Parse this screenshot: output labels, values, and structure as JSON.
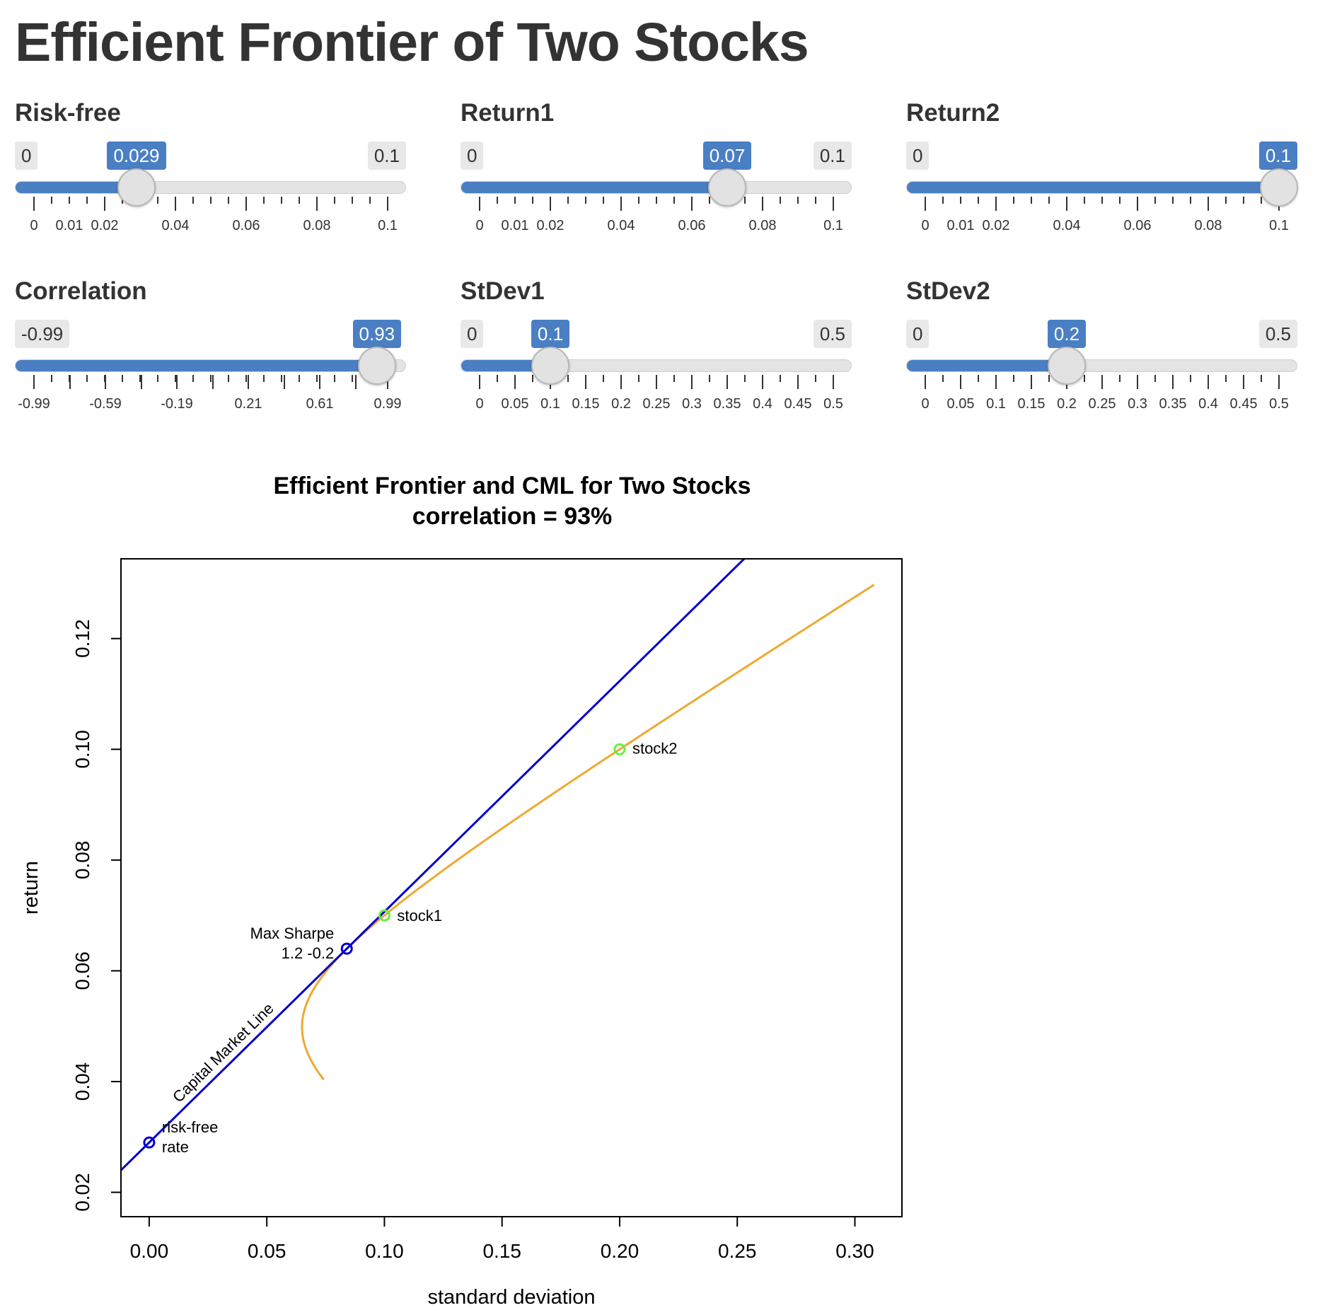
{
  "app": {
    "title": "Efficient Frontier of Two Stocks"
  },
  "colors": {
    "accent": "#4a7fc4",
    "track": "#e4e4e4",
    "cml": "#0000cc",
    "frontier": "#f0a830",
    "stock_points": "#66ee44"
  },
  "sliders": [
    {
      "id": "riskfree",
      "label": "Risk-free",
      "min": 0,
      "max": 0.1,
      "value": 0.029,
      "min_label": "0",
      "max_label": "0.1",
      "value_label": "0.029",
      "tick_labels": [
        "0",
        "0.01",
        "0.02",
        "0.04",
        "0.06",
        "0.08",
        "0.1"
      ],
      "tick_values": [
        0,
        0.01,
        0.02,
        0.04,
        0.06,
        0.08,
        0.1
      ],
      "major_tick_values": [
        0,
        0.02,
        0.04,
        0.06,
        0.08,
        0.1
      ],
      "minor_count": 20
    },
    {
      "id": "return1",
      "label": "Return1",
      "min": 0,
      "max": 0.1,
      "value": 0.07,
      "min_label": "0",
      "max_label": "0.1",
      "value_label": "0.07",
      "tick_labels": [
        "0",
        "0.01",
        "0.02",
        "0.04",
        "0.06",
        "0.08",
        "0.1"
      ],
      "tick_values": [
        0,
        0.01,
        0.02,
        0.04,
        0.06,
        0.08,
        0.1
      ],
      "major_tick_values": [
        0,
        0.02,
        0.04,
        0.06,
        0.08,
        0.1
      ],
      "minor_count": 20
    },
    {
      "id": "return2",
      "label": "Return2",
      "min": 0,
      "max": 0.1,
      "value": 0.1,
      "min_label": "0",
      "max_label": "",
      "value_label": "0.1",
      "tick_labels": [
        "0",
        "0.01",
        "0.02",
        "0.04",
        "0.06",
        "0.08",
        "0.1"
      ],
      "tick_values": [
        0,
        0.01,
        0.02,
        0.04,
        0.06,
        0.08,
        0.1
      ],
      "major_tick_values": [
        0,
        0.02,
        0.04,
        0.06,
        0.08,
        0.1
      ],
      "minor_count": 20
    },
    {
      "id": "correlation",
      "label": "Correlation",
      "min": -0.99,
      "max": 0.99,
      "value": 0.93,
      "min_label": "-0.99",
      "max_label": "",
      "value_label": "0.93",
      "tick_labels": [
        "-0.99",
        "-0.59",
        "-0.19",
        "0.21",
        "0.61",
        "0.99"
      ],
      "tick_values": [
        -0.99,
        -0.59,
        -0.19,
        0.21,
        0.61,
        0.99
      ],
      "major_tick_values": [
        -0.99,
        -0.79,
        -0.59,
        -0.39,
        -0.19,
        0.01,
        0.21,
        0.41,
        0.61,
        0.81,
        0.99
      ],
      "minor_count": 20
    },
    {
      "id": "stdev1",
      "label": "StDev1",
      "min": 0,
      "max": 0.5,
      "value": 0.1,
      "min_label": "0",
      "max_label": "0.5",
      "value_label": "0.1",
      "tick_labels": [
        "0",
        "0.05",
        "0.1",
        "0.15",
        "0.2",
        "0.25",
        "0.3",
        "0.35",
        "0.4",
        "0.45",
        "0.5"
      ],
      "tick_values": [
        0,
        0.05,
        0.1,
        0.15,
        0.2,
        0.25,
        0.3,
        0.35,
        0.4,
        0.45,
        0.5
      ],
      "major_tick_values": [
        0,
        0.05,
        0.1,
        0.15,
        0.2,
        0.25,
        0.3,
        0.35,
        0.4,
        0.45,
        0.5
      ],
      "minor_count": 20
    },
    {
      "id": "stdev2",
      "label": "StDev2",
      "min": 0,
      "max": 0.5,
      "value": 0.2,
      "min_label": "0",
      "max_label": "0.5",
      "value_label": "0.2",
      "tick_labels": [
        "0",
        "0.05",
        "0.1",
        "0.15",
        "0.2",
        "0.25",
        "0.3",
        "0.35",
        "0.4",
        "0.45",
        "0.5"
      ],
      "tick_values": [
        0,
        0.05,
        0.1,
        0.15,
        0.2,
        0.25,
        0.3,
        0.35,
        0.4,
        0.45,
        0.5
      ],
      "major_tick_values": [
        0,
        0.05,
        0.1,
        0.15,
        0.2,
        0.25,
        0.3,
        0.35,
        0.4,
        0.45,
        0.5
      ],
      "minor_count": 20
    }
  ],
  "chart_data": {
    "type": "line",
    "title": "Efficient Frontier and CML for Two Stocks",
    "subtitle": "correlation = 93%",
    "xlabel": "standard deviation",
    "ylabel": "return",
    "xlim": [
      -0.012,
      0.32
    ],
    "ylim": [
      0.0156,
      0.1344
    ],
    "x_ticks": [
      0.0,
      0.05,
      0.1,
      0.15,
      0.2,
      0.25,
      0.3
    ],
    "x_tick_labels": [
      "0.00",
      "0.05",
      "0.10",
      "0.15",
      "0.20",
      "0.25",
      "0.30"
    ],
    "y_ticks": [
      0.02,
      0.04,
      0.06,
      0.08,
      0.1,
      0.12
    ],
    "y_tick_labels": [
      "0.02",
      "0.04",
      "0.06",
      "0.08",
      "0.10",
      "0.12"
    ],
    "grid": false,
    "series": [
      {
        "kind": "cml",
        "label": "Capital Market Line",
        "color": "#0000cc",
        "intercept": 0.029,
        "slope": 0.4167
      },
      {
        "kind": "frontier",
        "color": "#f0a830",
        "r1": 0.07,
        "r2": 0.1,
        "s1": 0.1,
        "s2": 0.2,
        "rho": 0.93,
        "w_range": [
          -1.1,
          3.0
        ]
      }
    ],
    "points": [
      {
        "label": "stock1",
        "x": 0.1,
        "y": 0.07,
        "color": "#66ee44"
      },
      {
        "label": "stock2",
        "x": 0.2,
        "y": 0.1,
        "color": "#66ee44"
      },
      {
        "label_lines": [
          "Max Sharpe",
          "1.2 -0.2"
        ],
        "x": 0.084,
        "y": 0.064,
        "color": "#0000cc"
      },
      {
        "label_lines": [
          "risk-free",
          "rate"
        ],
        "x": 0.0,
        "y": 0.029,
        "color": "#0000cc"
      }
    ]
  }
}
